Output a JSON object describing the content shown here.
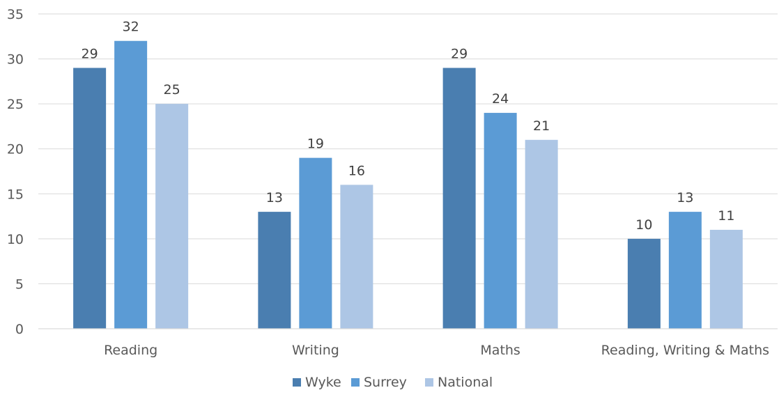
{
  "chart_data": {
    "type": "bar",
    "categories": [
      "Reading",
      "Writing",
      "Maths",
      "Reading, Writing & Maths"
    ],
    "series": [
      {
        "name": "Wyke",
        "values": [
          29,
          13,
          29,
          10
        ],
        "color": "#4a7eb0"
      },
      {
        "name": "Surrey",
        "values": [
          32,
          19,
          24,
          13
        ],
        "color": "#5b9bd5"
      },
      {
        "name": "National",
        "values": [
          25,
          16,
          21,
          11
        ],
        "color": "#adc6e5"
      }
    ],
    "ylim": [
      0,
      35
    ],
    "yticks": [
      0,
      5,
      10,
      15,
      20,
      25,
      30,
      35
    ],
    "grid": true,
    "legend_position": "bottom",
    "data_labels": true
  }
}
